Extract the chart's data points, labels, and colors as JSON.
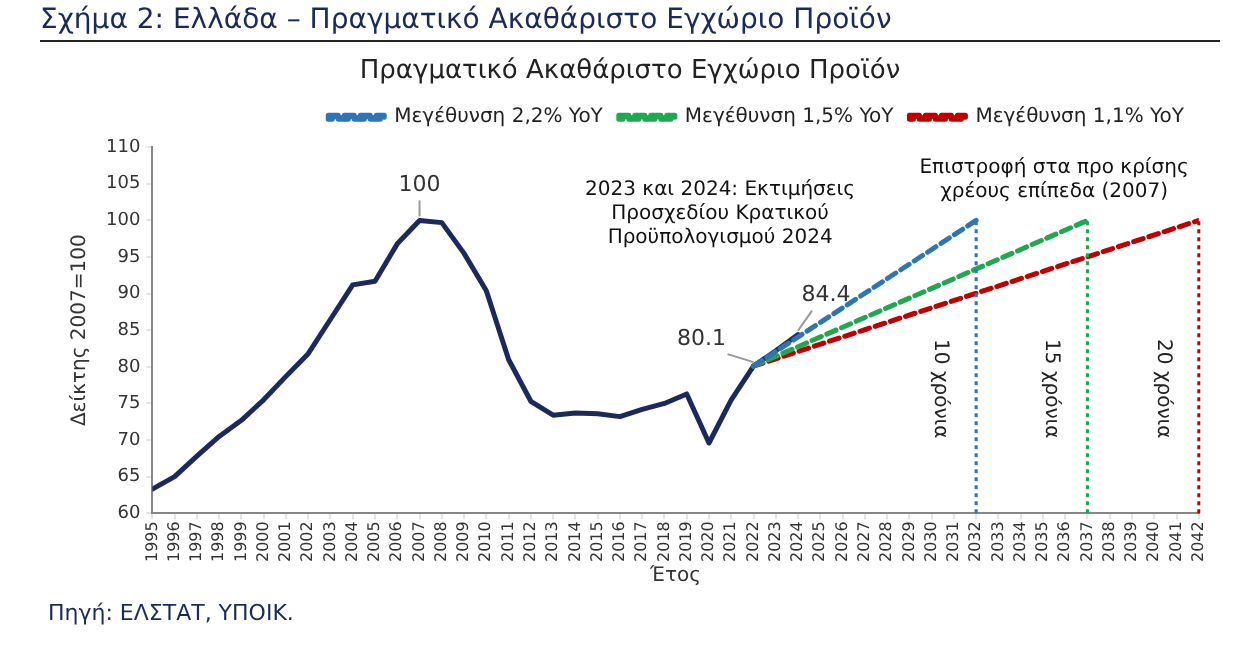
{
  "chart_data": {
    "type": "line",
    "title": "Σχήμα 2: Ελλάδα – Πραγματικό Ακαθάριστο Εγχώριο Προϊόν",
    "subtitle": "Πραγματικό Ακαθάριστο Εγχώριο Προϊόν",
    "xlabel": "Έτος",
    "ylabel": "Δείκτης 2007=100",
    "xlim": [
      1995,
      2042
    ],
    "xticks": [
      1995,
      1996,
      1997,
      1998,
      1999,
      2000,
      2001,
      2002,
      2003,
      2004,
      2005,
      2006,
      2007,
      2008,
      2009,
      2010,
      2011,
      2012,
      2013,
      2014,
      2015,
      2016,
      2017,
      2018,
      2019,
      2020,
      2021,
      2022,
      2023,
      2024,
      2025,
      2026,
      2027,
      2028,
      2029,
      2030,
      2031,
      2032,
      2033,
      2034,
      2035,
      2036,
      2037,
      2038,
      2039,
      2040,
      2041,
      2042
    ],
    "ylim": [
      60,
      110
    ],
    "yticks": [
      60,
      65,
      70,
      75,
      80,
      85,
      90,
      95,
      100,
      105,
      110
    ],
    "grid": false,
    "legend": "top",
    "marker": "none",
    "series": [
      {
        "color": "#1b2a5c",
        "line_style": "solid",
        "x": [
          1995,
          1996,
          1997,
          1998,
          1999,
          2000,
          2001,
          2002,
          2003,
          2004,
          2005,
          2006,
          2007,
          2008,
          2009,
          2010,
          2011,
          2012,
          2013,
          2014,
          2015,
          2016,
          2017,
          2018,
          2019,
          2020,
          2021,
          2022,
          2023,
          2024
        ],
        "values": [
          63.3,
          65,
          67.8,
          70.5,
          72.7,
          75.5,
          78.7,
          81.8,
          86.5,
          91.2,
          91.7,
          96.8,
          100,
          99.7,
          95.5,
          90.4,
          81,
          75.3,
          73.4,
          73.7,
          73.6,
          73.2,
          74.2,
          75,
          76.3,
          69.6,
          75.5,
          80.1,
          82.2,
          84.4
        ]
      },
      {
        "name": "Μεγέθυνση 2,2% YoY",
        "color": "#2e75b6",
        "line_style": "dashed",
        "x": [
          2022,
          2032
        ],
        "values": [
          80.1,
          100
        ]
      },
      {
        "name": "Μεγέθυνση 1,5% YoY",
        "color": "#1fa84f",
        "line_style": "dashed",
        "x": [
          2022,
          2037
        ],
        "values": [
          80.1,
          100
        ]
      },
      {
        "name": "Μεγέθυνση 1,1% YoY",
        "color": "#c00000",
        "line_style": "dashed",
        "x": [
          2022,
          2042
        ],
        "values": [
          80.1,
          100
        ]
      }
    ],
    "ref_lines": [
      {
        "axis": "x",
        "value": 2032,
        "label": "10 χρόνια",
        "color": "#2e75b6",
        "line_style": "dotted"
      },
      {
        "axis": "x",
        "value": 2037,
        "label": "15 χρόνια",
        "color": "#1fa84f",
        "line_style": "dotted"
      },
      {
        "axis": "x",
        "value": 2042,
        "label": "20 χρόνια",
        "color": "#c00000",
        "line_style": "dotted"
      }
    ],
    "annotations": [
      {
        "text": "100",
        "x": 2007,
        "y": 100
      },
      {
        "text": "80.1",
        "x": 2022,
        "y": 80.1
      },
      {
        "text": "84.4",
        "x": 2024,
        "y": 84.4
      },
      "2023 και 2024: Εκτιμήσεις Προσχεδίου Κρατικού Προϋπολογισμού 2024",
      "Επιστροφή στα προ κρίσης χρέους επίπεδα (2007)",
      "Πηγή: ΕΛΣΤΑΤ, ΥΠΟΙΚ."
    ]
  }
}
